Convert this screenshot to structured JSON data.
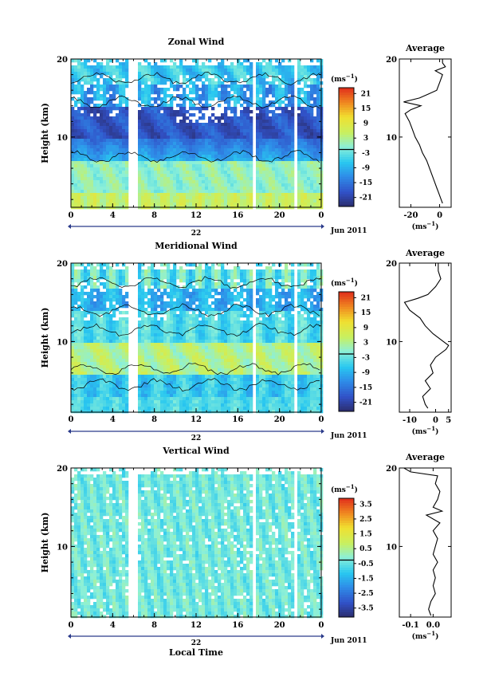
{
  "chart_data": [
    {
      "type": "heatmap",
      "title": "Zonal Wind",
      "ylabel": "Height (km)",
      "xlabel": "",
      "x_ticks": [
        "0",
        "4",
        "8",
        "12",
        "16",
        "20",
        "0"
      ],
      "y_ticks": [
        "20",
        "10"
      ],
      "ylim": [
        1,
        20
      ],
      "date_marker": "22",
      "date_label": "Jun 2011",
      "colorbar": {
        "unit": "(ms",
        "unit_sup": "−1",
        "unit_close": ")",
        "ticks": [
          "21",
          "15",
          "9",
          "3",
          "-3",
          "-9",
          "-15",
          "-21"
        ],
        "range": [
          -24,
          24
        ]
      },
      "average": {
        "title": "Average",
        "x_ticks": [
          "-20",
          "0"
        ],
        "y_ticks": [
          "20",
          "10"
        ],
        "unit": "(ms",
        "unit_sup": "−1",
        "unit_close": ")",
        "xlim": [
          -28,
          8
        ],
        "heights": [
          1.5,
          2,
          2.5,
          3,
          3.5,
          4,
          5,
          6,
          7,
          8,
          9,
          10,
          11,
          12,
          13,
          13.5,
          14,
          14.5,
          15,
          15.5,
          16,
          17,
          18,
          18.5,
          19,
          19.5,
          20
        ],
        "values": [
          2,
          1,
          0,
          -1,
          -2,
          -3,
          -5,
          -7,
          -9,
          -12,
          -14,
          -17,
          -19,
          -21,
          -24,
          -20,
          -13,
          -25,
          -14,
          -8,
          -2,
          0,
          2,
          -3,
          4,
          2,
          2
        ]
      }
    },
    {
      "type": "heatmap",
      "title": "Meridional Wind",
      "ylabel": "Height (km)",
      "xlabel": "",
      "x_ticks": [
        "0",
        "4",
        "8",
        "12",
        "16",
        "20",
        "0"
      ],
      "y_ticks": [
        "20",
        "10"
      ],
      "ylim": [
        1,
        20
      ],
      "date_marker": "22",
      "date_label": "Jun 2011",
      "colorbar": {
        "unit": "(ms",
        "unit_sup": "−1",
        "unit_close": ")",
        "ticks": [
          "21",
          "15",
          "9",
          "3",
          "-3",
          "-9",
          "-15",
          "-21"
        ],
        "range": [
          -24,
          24
        ]
      },
      "average": {
        "title": "Average",
        "x_ticks": [
          "-10",
          "0",
          "5"
        ],
        "y_ticks": [
          "20",
          "10"
        ],
        "unit": "(ms",
        "unit_sup": "−1",
        "unit_close": ")",
        "xlim": [
          -14,
          6
        ],
        "heights": [
          1.5,
          2,
          3,
          4,
          5,
          6,
          7,
          8,
          9,
          9.5,
          10,
          11,
          12,
          13,
          14,
          15,
          15.5,
          16,
          17,
          18,
          19,
          20
        ],
        "values": [
          -3,
          -4,
          -5,
          -2,
          -4,
          -1,
          -2,
          0,
          4,
          5,
          3,
          -1,
          -4,
          -6,
          -10,
          -12,
          -7,
          -3,
          0,
          2,
          1,
          1
        ]
      }
    },
    {
      "type": "heatmap",
      "title": "Vertical Wind",
      "ylabel": "Height (km)",
      "xlabel": "Local Time",
      "x_ticks": [
        "0",
        "4",
        "8",
        "12",
        "16",
        "20",
        "0"
      ],
      "y_ticks": [
        "20",
        "10"
      ],
      "ylim": [
        1,
        20
      ],
      "date_marker": "22",
      "date_label": "Jun 2011",
      "colorbar": {
        "unit": "(ms",
        "unit_sup": "−1",
        "unit_close": ")",
        "ticks": [
          "3.5",
          "2.5",
          "1.5",
          "0.5",
          "-0.5",
          "-1.5",
          "-2.5",
          "-3.5"
        ],
        "range": [
          -4,
          4
        ]
      },
      "average": {
        "title": "Average",
        "x_ticks": [
          "-0.1",
          "0.0"
        ],
        "y_ticks": [
          "20",
          "10"
        ],
        "unit": "(ms",
        "unit_sup": "−1",
        "unit_close": ")",
        "xlim": [
          -0.15,
          0.08
        ],
        "heights": [
          1.2,
          2,
          3,
          4,
          5,
          6,
          7,
          8,
          9,
          10,
          11,
          12,
          13,
          14,
          14.5,
          15,
          16,
          17,
          18,
          19,
          19.5,
          20
        ],
        "values": [
          -0.01,
          -0.02,
          -0.01,
          0.01,
          0.0,
          0.01,
          0.0,
          0.02,
          0.0,
          0.01,
          0.02,
          0.0,
          0.03,
          -0.03,
          0.04,
          0.0,
          0.02,
          0.03,
          0.01,
          0.02,
          -0.1,
          -0.13
        ]
      }
    }
  ]
}
